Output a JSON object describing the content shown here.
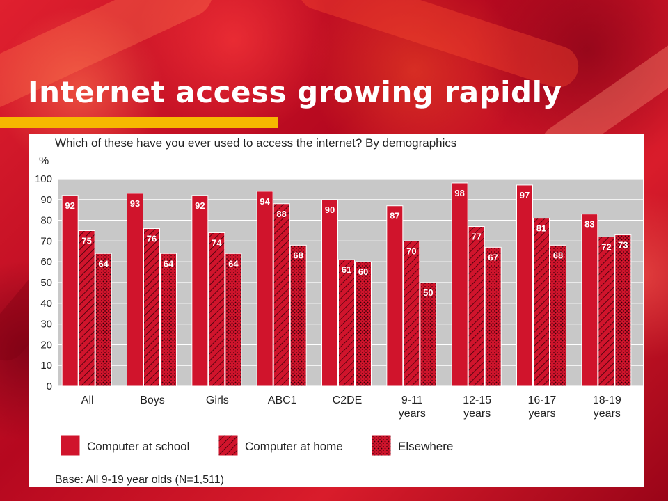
{
  "slide": {
    "title": "Internet access growing rapidly",
    "accent_color": "#f6b800"
  },
  "chart_data": {
    "type": "bar",
    "title": "Which of these have you ever used to access the internet? By demographics",
    "ylabel": "%",
    "ylim": [
      0,
      100
    ],
    "yticks": [
      0,
      10,
      20,
      30,
      40,
      50,
      60,
      70,
      80,
      90,
      100
    ],
    "grid": true,
    "categories": [
      "All",
      "Boys",
      "Girls",
      "ABC1",
      "C2DE",
      "9-11 years",
      "12-15 years",
      "16-17 years",
      "18-19 years"
    ],
    "category_lines": [
      [
        "All"
      ],
      [
        "Boys"
      ],
      [
        "Girls"
      ],
      [
        "ABC1"
      ],
      [
        "C2DE"
      ],
      [
        "9-11",
        "years"
      ],
      [
        "12-15",
        "years"
      ],
      [
        "16-17",
        "years"
      ],
      [
        "18-19",
        "years"
      ]
    ],
    "series": [
      {
        "name": "Computer at school",
        "pattern": "solid",
        "color": "#d0142c",
        "values": [
          92,
          93,
          92,
          94,
          90,
          87,
          98,
          97,
          83
        ]
      },
      {
        "name": "Computer at home",
        "pattern": "hatch",
        "color": "#d0142c",
        "values": [
          75,
          76,
          74,
          88,
          61,
          70,
          77,
          81,
          72
        ]
      },
      {
        "name": "Elsewhere",
        "pattern": "dots",
        "color": "#d0142c",
        "values": [
          64,
          64,
          64,
          68,
          60,
          50,
          67,
          68,
          73
        ]
      }
    ],
    "legend_position": "bottom",
    "base_note": "Base: All 9-19 year olds (N=1,511)"
  }
}
